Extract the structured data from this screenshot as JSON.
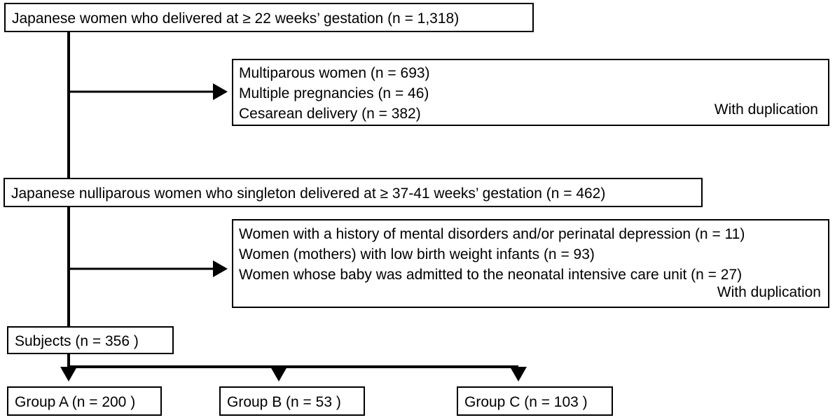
{
  "boxes": {
    "top": "Japanese women who delivered at ≥ 22 weeks’ gestation (n = 1,318)",
    "exclusion1": {
      "items": [
        "Multiparous women (n = 693)",
        "Multiple pregnancies (n = 46)",
        "Cesarean delivery (n = 382)"
      ],
      "note": "With duplication"
    },
    "middle": "Japanese nulliparous women who singleton delivered at ≥ 37-41 weeks’ gestation (n = 462)",
    "exclusion2": {
      "items": [
        "Women with a history of mental disorders and/or perinatal depression (n = 11)",
        "Women (mothers) with low birth weight infants (n = 93)",
        "Women whose baby was admitted to the neonatal intensive care unit (n = 27)"
      ],
      "note": "With duplication"
    },
    "subjects": "Subjects (n = 356 )",
    "groups": [
      "Group A (n = 200 )",
      "Group B (n = 53 )",
      "Group C (n = 103 )"
    ]
  }
}
